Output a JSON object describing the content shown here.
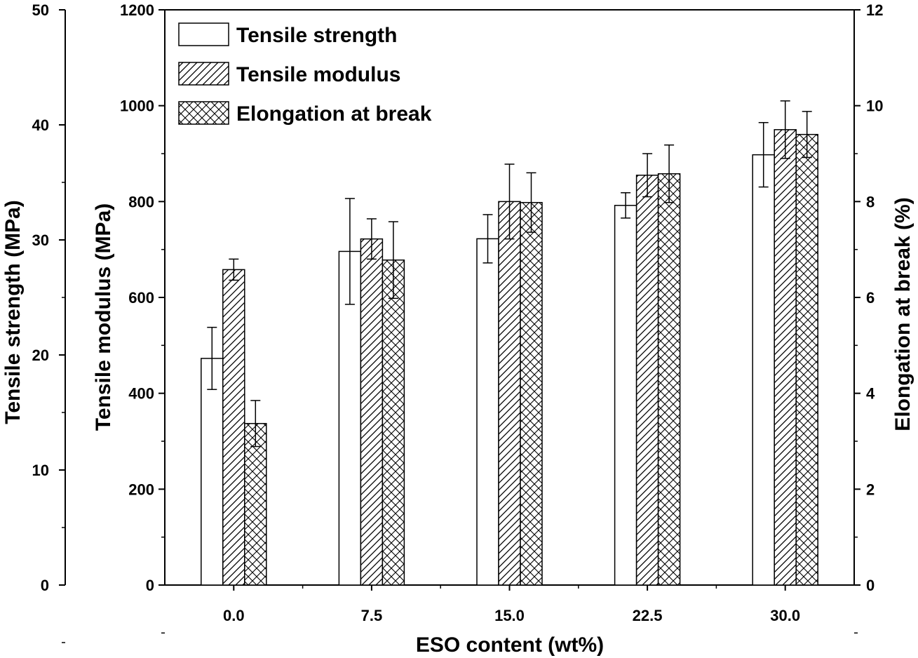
{
  "chart_data": {
    "type": "bar",
    "categories": [
      "0.0",
      "7.5",
      "15.0",
      "22.5",
      "30.0"
    ],
    "xlabel": "ESO content (wt%)",
    "grid": false,
    "legend_position": "top-left",
    "axes": {
      "left_outer": {
        "label": "Tensile strength (MPa)",
        "range": [
          0,
          50
        ],
        "ticks": [
          "0",
          "10",
          "20",
          "30",
          "40",
          "50"
        ]
      },
      "left_inner": {
        "label": "Tensile modulus (MPa)",
        "range": [
          0,
          1200
        ],
        "ticks": [
          "0",
          "200",
          "400",
          "600",
          "800",
          "1000",
          "1200"
        ]
      },
      "right": {
        "label": "Elongation at break (%)",
        "range": [
          0,
          12
        ],
        "ticks": [
          "0",
          "2",
          "4",
          "6",
          "8",
          "10",
          "12"
        ]
      }
    },
    "series": [
      {
        "name": "Tensile strength",
        "axis": "left_outer",
        "pattern": "none",
        "values": [
          19.7,
          29.0,
          30.1,
          33.0,
          37.4
        ],
        "errors": [
          2.7,
          4.6,
          2.1,
          1.1,
          2.8
        ]
      },
      {
        "name": "Tensile modulus",
        "axis": "left_inner",
        "pattern": "hatch",
        "values": [
          658,
          722,
          800,
          855,
          950
        ],
        "errors": [
          22,
          42,
          78,
          45,
          60
        ]
      },
      {
        "name": "Elongation at break",
        "axis": "right",
        "pattern": "crosshatch",
        "values": [
          3.37,
          6.78,
          7.98,
          8.58,
          9.4
        ],
        "errors": [
          0.48,
          0.8,
          0.62,
          0.6,
          0.48
        ]
      }
    ]
  }
}
